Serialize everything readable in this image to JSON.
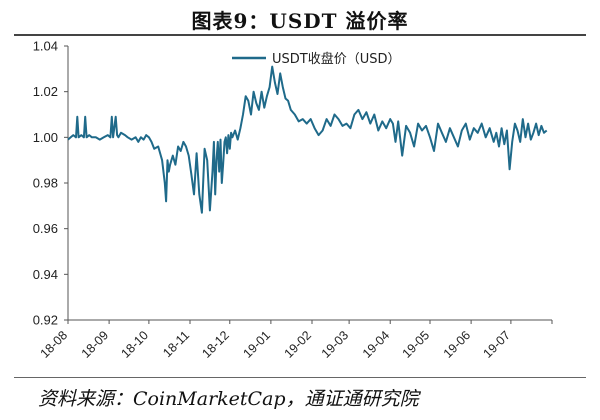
{
  "page": {
    "title": "图表9：USDT 溢价率",
    "source": "资料来源：CoinMarketCap，通证通研究院"
  },
  "chart_data": {
    "type": "line",
    "title": "图表9：USDT 溢价率",
    "xlabel": "",
    "ylabel": "",
    "ylim": [
      0.92,
      1.04
    ],
    "yticks": [
      "0.92",
      "0.94",
      "0.96",
      "0.98",
      "1.00",
      "1.02",
      "1.04"
    ],
    "xticks": [
      "18-08",
      "18-09",
      "18-10",
      "18-11",
      "18-12",
      "19-01",
      "19-02",
      "19-03",
      "19-04",
      "19-05",
      "19-06",
      "19-07"
    ],
    "grid": false,
    "legend_position": "top-center",
    "line_color": "#1f6a8a",
    "series": [
      {
        "name": "USDT收盘价（USD）",
        "x": [
          "2018-08-01",
          "2018-08-03",
          "2018-08-05",
          "2018-08-07",
          "2018-08-08",
          "2018-08-09",
          "2018-08-11",
          "2018-08-13",
          "2018-08-14",
          "2018-08-15",
          "2018-08-17",
          "2018-08-19",
          "2018-08-22",
          "2018-08-25",
          "2018-08-28",
          "2018-08-31",
          "2018-09-02",
          "2018-09-03",
          "2018-09-04",
          "2018-09-06",
          "2018-09-07",
          "2018-09-08",
          "2018-09-10",
          "2018-09-13",
          "2018-09-15",
          "2018-09-18",
          "2018-09-21",
          "2018-09-23",
          "2018-09-25",
          "2018-09-27",
          "2018-09-29",
          "2018-10-01",
          "2018-10-03",
          "2018-10-05",
          "2018-10-08",
          "2018-10-11",
          "2018-10-13",
          "2018-10-14",
          "2018-10-15",
          "2018-10-16",
          "2018-10-17",
          "2018-10-19",
          "2018-10-21",
          "2018-10-23",
          "2018-10-25",
          "2018-10-27",
          "2018-10-29",
          "2018-10-31",
          "2018-11-02",
          "2018-11-04",
          "2018-11-06",
          "2018-11-08",
          "2018-11-10",
          "2018-11-12",
          "2018-11-14",
          "2018-11-16",
          "2018-11-18",
          "2018-11-19",
          "2018-11-20",
          "2018-11-21",
          "2018-11-22",
          "2018-11-23",
          "2018-11-24",
          "2018-11-25",
          "2018-11-26",
          "2018-11-27",
          "2018-11-28",
          "2018-11-29",
          "2018-11-30",
          "2018-12-01",
          "2018-12-02",
          "2018-12-03",
          "2018-12-05",
          "2018-12-07",
          "2018-12-09",
          "2018-12-11",
          "2018-12-13",
          "2018-12-15",
          "2018-12-17",
          "2018-12-19",
          "2018-12-21",
          "2018-12-23",
          "2018-12-25",
          "2018-12-27",
          "2018-12-29",
          "2018-12-31",
          "2019-01-02",
          "2019-01-04",
          "2019-01-06",
          "2019-01-08",
          "2019-01-10",
          "2019-01-12",
          "2019-01-14",
          "2019-01-16",
          "2019-01-19",
          "2019-01-22",
          "2019-01-25",
          "2019-01-28",
          "2019-01-31",
          "2019-02-03",
          "2019-02-06",
          "2019-02-09",
          "2019-02-12",
          "2019-02-15",
          "2019-02-18",
          "2019-02-21",
          "2019-02-24",
          "2019-02-27",
          "2019-03-02",
          "2019-03-05",
          "2019-03-08",
          "2019-03-11",
          "2019-03-14",
          "2019-03-17",
          "2019-03-20",
          "2019-03-23",
          "2019-03-26",
          "2019-03-29",
          "2019-04-01",
          "2019-04-03",
          "2019-04-05",
          "2019-04-07",
          "2019-04-10",
          "2019-04-13",
          "2019-04-16",
          "2019-04-19",
          "2019-04-22",
          "2019-04-25",
          "2019-04-28",
          "2019-05-01",
          "2019-05-04",
          "2019-05-07",
          "2019-05-10",
          "2019-05-13",
          "2019-05-16",
          "2019-05-19",
          "2019-05-22",
          "2019-05-25",
          "2019-05-28",
          "2019-05-31",
          "2019-06-03",
          "2019-06-06",
          "2019-06-09",
          "2019-06-12",
          "2019-06-15",
          "2019-06-18",
          "2019-06-20",
          "2019-06-22",
          "2019-06-24",
          "2019-06-26",
          "2019-06-28",
          "2019-06-30",
          "2019-07-02",
          "2019-07-04",
          "2019-07-06",
          "2019-07-08",
          "2019-07-10",
          "2019-07-12",
          "2019-07-14",
          "2019-07-16",
          "2019-07-18",
          "2019-07-20",
          "2019-07-22",
          "2019-07-24",
          "2019-07-26",
          "2019-07-28"
        ],
        "values": [
          0.999,
          1.0,
          1.001,
          1.0,
          1.009,
          1.0,
          1.001,
          1.0,
          1.009,
          1.0,
          1.001,
          1.0,
          1.0,
          0.999,
          1.0,
          1.001,
          1.0,
          1.009,
          1.0,
          1.009,
          1.001,
          1.0,
          1.002,
          1.001,
          1.0,
          0.999,
          1.0,
          0.998,
          1.0,
          0.999,
          1.001,
          1.0,
          0.998,
          0.995,
          0.996,
          0.99,
          0.98,
          0.972,
          0.99,
          0.985,
          0.988,
          0.992,
          0.988,
          0.996,
          0.994,
          0.998,
          0.996,
          0.992,
          0.984,
          0.975,
          0.993,
          0.975,
          0.967,
          0.995,
          0.99,
          0.968,
          0.985,
          0.998,
          0.975,
          0.99,
          0.998,
          0.985,
          0.999,
          0.98,
          0.988,
          0.998,
          1.0,
          0.993,
          1.001,
          0.995,
          1.002,
          1.0,
          1.003,
          0.999,
          1.004,
          1.01,
          1.018,
          1.016,
          1.01,
          1.02,
          1.015,
          1.012,
          1.02,
          1.013,
          1.018,
          1.022,
          1.031,
          1.024,
          1.019,
          1.028,
          1.022,
          1.017,
          1.016,
          1.012,
          1.01,
          1.007,
          1.008,
          1.006,
          1.008,
          1.004,
          1.001,
          1.003,
          1.008,
          1.005,
          1.01,
          1.008,
          1.005,
          1.006,
          1.004,
          1.01,
          1.012,
          1.008,
          1.011,
          1.006,
          1.01,
          1.003,
          1.007,
          1.004,
          1.008,
          1.006,
          0.998,
          1.007,
          0.992,
          1.005,
          1.002,
          0.996,
          1.006,
          1.003,
          1.005,
          1.0,
          0.994,
          1.006,
          1.002,
          0.998,
          1.004,
          1.0,
          0.996,
          1.003,
          1.006,
          0.999,
          1.004,
          1.002,
          1.006,
          1.0,
          1.004,
          0.998,
          1.002,
          0.996,
          1.004,
          0.997,
          1.003,
          0.986,
          0.998,
          1.006,
          1.003,
          0.998,
          1.008,
          1.0,
          1.006,
          0.999,
          1.002,
          1.006,
          1.001,
          1.005,
          1.002,
          1.003
        ]
      }
    ]
  }
}
